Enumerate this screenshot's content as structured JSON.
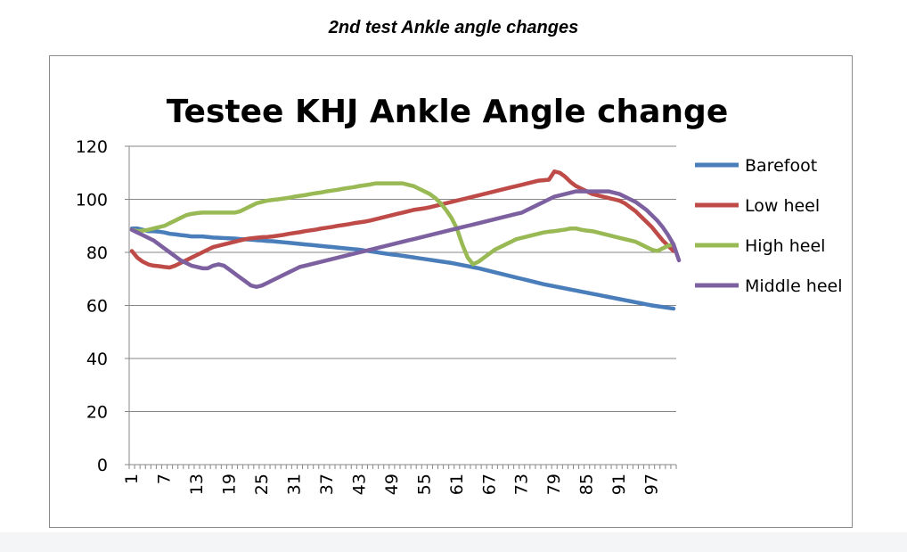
{
  "caption": "2nd test Ankle angle changes",
  "chart_data": {
    "type": "line",
    "title": "Testee KHJ Ankle Angle change",
    "xlabel": "",
    "ylabel": "",
    "ylim": [
      0,
      120
    ],
    "yticks": [
      0,
      20,
      40,
      60,
      80,
      100,
      120
    ],
    "x_tick_labels": [
      "1",
      "7",
      "13",
      "19",
      "25",
      "31",
      "37",
      "43",
      "49",
      "55",
      "61",
      "67",
      "73",
      "79",
      "85",
      "91",
      "97"
    ],
    "x_count": 101,
    "grid": "horizontal",
    "legend_position": "right",
    "colors": {
      "Barefoot": "#4a7ebb",
      "Low heel": "#be4b48",
      "High heel": "#98b954",
      "Middle heel": "#7d60a0"
    },
    "series": [
      {
        "name": "Barefoot",
        "color": "#4a7ebb",
        "values": [
          89,
          89,
          88.5,
          88,
          88,
          87.8,
          87.5,
          87,
          86.8,
          86.5,
          86.3,
          86,
          86,
          86,
          85.8,
          85.6,
          85.5,
          85.4,
          85.3,
          85.2,
          85,
          84.9,
          84.8,
          84.6,
          84.5,
          84.3,
          84.2,
          84,
          83.8,
          83.6,
          83.4,
          83.2,
          83,
          82.8,
          82.6,
          82.4,
          82.2,
          82,
          81.8,
          81.6,
          81.4,
          81.2,
          81,
          80.7,
          80.4,
          80.1,
          79.8,
          79.5,
          79.2,
          79,
          78.7,
          78.4,
          78.1,
          77.8,
          77.5,
          77.2,
          76.9,
          76.6,
          76.3,
          76,
          75.6,
          75.2,
          74.8,
          74.4,
          74,
          73.5,
          73,
          72.5,
          72,
          71.5,
          71,
          70.5,
          70,
          69.5,
          69,
          68.5,
          68,
          67.6,
          67.2,
          66.8,
          66.4,
          66,
          65.6,
          65.2,
          64.8,
          64.4,
          64,
          63.6,
          63.2,
          62.8,
          62.4,
          62,
          61.6,
          61.2,
          60.8,
          60.4,
          60,
          59.7,
          59.4,
          59.1,
          58.8
        ]
      },
      {
        "name": "Low heel",
        "color": "#be4b48",
        "values": [
          80.5,
          78,
          76.5,
          75.5,
          75,
          74.8,
          74.5,
          74.3,
          75,
          76,
          77,
          78,
          79,
          80,
          81,
          82,
          82.5,
          83,
          83.5,
          84,
          84.5,
          85,
          85.3,
          85.5,
          85.7,
          85.8,
          86,
          86.3,
          86.6,
          87,
          87.3,
          87.6,
          88,
          88.3,
          88.6,
          89,
          89.3,
          89.6,
          90,
          90.3,
          90.6,
          91,
          91.3,
          91.6,
          92,
          92.5,
          93,
          93.5,
          94,
          94.5,
          95,
          95.5,
          96,
          96.3,
          96.6,
          97,
          97.5,
          98,
          98.5,
          99,
          99.5,
          100,
          100.5,
          101,
          101.5,
          102,
          102.5,
          103,
          103.5,
          104,
          104.5,
          105,
          105.5,
          106,
          106.5,
          107,
          107.2,
          107.4,
          110.5,
          110,
          108.5,
          106.5,
          105,
          104,
          103,
          102,
          101.5,
          101,
          100.5,
          100,
          99.5,
          98.5,
          97,
          95.5,
          93.5,
          91.5,
          89.5,
          87,
          84.5,
          82.5,
          80.5
        ]
      },
      {
        "name": "High heel",
        "color": "#98b954",
        "values": [
          88.5,
          88,
          88.2,
          88.5,
          89,
          89.5,
          90,
          91,
          92,
          93,
          94,
          94.5,
          94.8,
          95,
          95,
          95,
          95,
          95,
          95,
          95,
          95.5,
          96.5,
          97.5,
          98.5,
          99,
          99.5,
          99.8,
          100,
          100.3,
          100.6,
          101,
          101.3,
          101.6,
          102,
          102.3,
          102.6,
          103,
          103.3,
          103.6,
          104,
          104.3,
          104.6,
          105,
          105.3,
          105.6,
          106,
          106,
          106,
          106,
          106,
          106,
          105.5,
          105,
          104,
          103,
          102,
          100.5,
          98.5,
          96,
          93,
          89,
          83,
          78,
          75.5,
          76.5,
          78,
          79.5,
          81,
          82,
          83,
          84,
          85,
          85.5,
          86,
          86.5,
          87,
          87.5,
          87.8,
          88,
          88.3,
          88.6,
          89,
          89,
          88.5,
          88.2,
          88,
          87.5,
          87,
          86.5,
          86,
          85.5,
          85,
          84.5,
          84,
          83,
          82,
          81,
          80.5,
          81.5,
          82.5,
          83
        ]
      },
      {
        "name": "Middle heel",
        "color": "#7d60a0",
        "values": [
          88.5,
          87.5,
          86.5,
          85.5,
          84.5,
          83,
          81.5,
          80,
          78.5,
          77,
          76,
          75,
          74.5,
          74,
          74,
          75,
          75.5,
          75,
          73.5,
          72,
          70.5,
          69,
          67.5,
          67,
          67.5,
          68.5,
          69.5,
          70.5,
          71.5,
          72.5,
          73.5,
          74.5,
          75,
          75.5,
          76,
          76.5,
          77,
          77.5,
          78,
          78.5,
          79,
          79.5,
          80,
          80.5,
          81,
          81.5,
          82,
          82.5,
          83,
          83.5,
          84,
          84.5,
          85,
          85.5,
          86,
          86.5,
          87,
          87.5,
          88,
          88.5,
          89,
          89.5,
          90,
          90.5,
          91,
          91.5,
          92,
          92.5,
          93,
          93.5,
          94,
          94.5,
          95,
          96,
          97,
          98,
          99,
          100,
          101,
          101.5,
          102,
          102.5,
          103,
          103,
          103,
          103,
          103,
          103,
          103,
          102.5,
          102,
          101,
          100,
          99,
          97.5,
          96,
          94,
          92,
          89.5,
          86.5,
          83,
          77
        ]
      }
    ]
  }
}
